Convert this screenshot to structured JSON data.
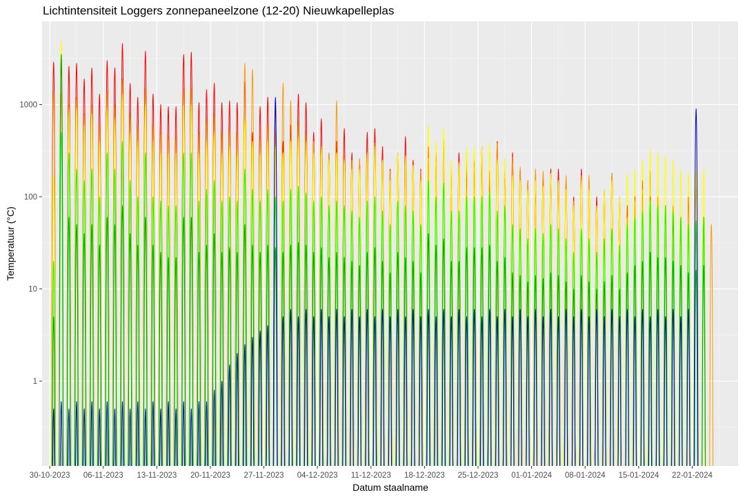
{
  "chart_data": {
    "type": "line",
    "title": "Lichtintensiteit Loggers zonnepaneelzone (12-20) Nieuwkapelleplas",
    "xlabel": "Datum staalname",
    "ylabel": "Temperatuur (°C)",
    "y_scale": "log10",
    "ylim": [
      0.12,
      8000
    ],
    "xlim": [
      "2023-10-29",
      "2024-01-28"
    ],
    "x_ticks": [
      "30-10-2023",
      "06-11-2023",
      "13-11-2023",
      "20-11-2023",
      "27-11-2023",
      "04-12-2023",
      "11-12-2023",
      "18-12-2023",
      "25-12-2023",
      "01-01-2024",
      "08-01-2024",
      "15-01-2024",
      "22-01-2024"
    ],
    "y_ticks": [
      1,
      10,
      100,
      1000
    ],
    "y_tick_labels": [
      "1",
      "10",
      "100",
      "1000"
    ],
    "grid": true,
    "legend": "none",
    "start_date": "2023-10-30",
    "end_date": "2024-01-23",
    "series": [
      {
        "color": "#ff0000",
        "peak_values": [
          2900,
          3000,
          2600,
          2800,
          1900,
          2500,
          1300,
          3000,
          2500,
          4600,
          1700,
          1200,
          3800,
          1300,
          1000,
          950,
          950,
          3500,
          3700,
          1050,
          1450,
          1700,
          1050,
          1100,
          1050,
          1750,
          500,
          950,
          1200,
          1000,
          400,
          600,
          1300,
          1050,
          500,
          700,
          300,
          400,
          550,
          300,
          250,
          500,
          550,
          350,
          200,
          300,
          450,
          250,
          200,
          350,
          300,
          400,
          200,
          300,
          200,
          250,
          350,
          150,
          400,
          200,
          300,
          200,
          150,
          120,
          180,
          200,
          200,
          150,
          100,
          200,
          120,
          100,
          120,
          180,
          100,
          80,
          100,
          150,
          100,
          80,
          80,
          60,
          60,
          100,
          50,
          60
        ]
      },
      {
        "color": "#ff9900",
        "peak_values": [
          1400,
          1300,
          1000,
          1200,
          800,
          1000,
          600,
          1400,
          1000,
          1900,
          800,
          600,
          1500,
          600,
          500,
          450,
          450,
          1500,
          1500,
          500,
          700,
          800,
          500,
          550,
          500,
          2800,
          2400,
          450,
          600,
          500,
          1700,
          1100,
          650,
          500,
          400,
          350,
          300,
          1100,
          280,
          250,
          260,
          260,
          380,
          250,
          190,
          260,
          200,
          190,
          190,
          260,
          240,
          380,
          180,
          240,
          260,
          210,
          220,
          190,
          380,
          210,
          270,
          210,
          150,
          200,
          190,
          170,
          120,
          170,
          90,
          170,
          170,
          70,
          100,
          180,
          90,
          60,
          90,
          120,
          190,
          100,
          80,
          80,
          50,
          50,
          130,
          40,
          50
        ]
      },
      {
        "color": "#ffff00",
        "peak_values": [
          170,
          5000,
          900,
          900,
          600,
          800,
          400,
          900,
          700,
          1300,
          500,
          400,
          1000,
          400,
          300,
          300,
          300,
          1000,
          1000,
          300,
          400,
          500,
          300,
          350,
          300,
          700,
          400,
          300,
          400,
          350,
          300,
          400,
          450,
          400,
          300,
          350,
          250,
          300,
          250,
          200,
          200,
          300,
          350,
          250,
          150,
          300,
          280,
          220,
          150,
          600,
          400,
          550,
          250,
          230,
          340,
          350,
          350,
          380,
          250,
          260,
          170,
          150,
          120,
          150,
          130,
          180,
          150,
          120,
          80,
          150,
          120,
          80,
          120,
          150,
          100,
          180,
          200,
          250,
          330,
          300,
          280,
          250,
          200,
          180,
          190,
          200
        ]
      },
      {
        "color": "#00ff00",
        "peak_values": [
          20,
          500,
          300,
          200,
          150,
          200,
          100,
          300,
          200,
          400,
          150,
          100,
          300,
          100,
          90,
          80,
          80,
          300,
          300,
          90,
          120,
          150,
          90,
          100,
          90,
          200,
          120,
          90,
          120,
          100,
          90,
          120,
          130,
          110,
          90,
          100,
          80,
          90,
          80,
          70,
          60,
          90,
          100,
          70,
          50,
          90,
          80,
          70,
          50,
          150,
          100,
          140,
          70,
          70,
          100,
          100,
          100,
          110,
          70,
          80,
          50,
          45,
          35,
          45,
          40,
          50,
          45,
          35,
          25,
          45,
          35,
          25,
          35,
          45,
          30,
          50,
          60,
          70,
          90,
          80,
          80,
          70,
          60,
          50,
          55,
          60
        ]
      },
      {
        "color": "#00a000",
        "peak_values": [
          5,
          3500,
          60,
          50,
          40,
          50,
          30,
          60,
          50,
          80,
          40,
          30,
          60,
          30,
          25,
          22,
          22,
          60,
          60,
          25,
          30,
          40,
          25,
          28,
          25,
          50,
          30,
          25,
          30,
          28,
          25,
          30,
          32,
          30,
          25,
          28,
          22,
          25,
          22,
          20,
          18,
          25,
          28,
          20,
          15,
          25,
          22,
          20,
          15,
          40,
          30,
          35,
          20,
          20,
          28,
          28,
          28,
          30,
          20,
          22,
          15,
          14,
          12,
          14,
          13,
          15,
          14,
          12,
          10,
          14,
          12,
          10,
          12,
          14,
          10,
          15,
          18,
          20,
          25,
          22,
          22,
          20,
          18,
          15,
          16,
          18
        ]
      },
      {
        "color": "#0000b4",
        "peak_values": [
          0.5,
          0.6,
          0.5,
          0.6,
          0.5,
          0.6,
          0.5,
          0.6,
          0.5,
          0.6,
          0.5,
          0.6,
          0.5,
          0.6,
          0.5,
          0.6,
          0.5,
          0.6,
          0.5,
          0.6,
          0.6,
          0.8,
          1.0,
          1.5,
          2.0,
          2.5,
          3.0,
          3.5,
          4.0,
          1200,
          5.0,
          6.0,
          5.0,
          6.0,
          5.0,
          6.0,
          5.0,
          6.0,
          5.0,
          6.0,
          5.0,
          6.0,
          5.0,
          6.0,
          5.0,
          6.0,
          5.0,
          6.0,
          5.0,
          6.0,
          5.0,
          6.0,
          5.0,
          6.0,
          5.0,
          6.0,
          5.0,
          6.0,
          5.0,
          6.0,
          5.0,
          6.0,
          5.0,
          6.0,
          5.0,
          6.0,
          5.0,
          6.0,
          5.0,
          6.0,
          5.0,
          6.0,
          5.0,
          6.0,
          5.0,
          6.0,
          5.0,
          6.0,
          5.0,
          6.0,
          5.0,
          6.0,
          5.0,
          6.0,
          900
        ]
      }
    ]
  }
}
